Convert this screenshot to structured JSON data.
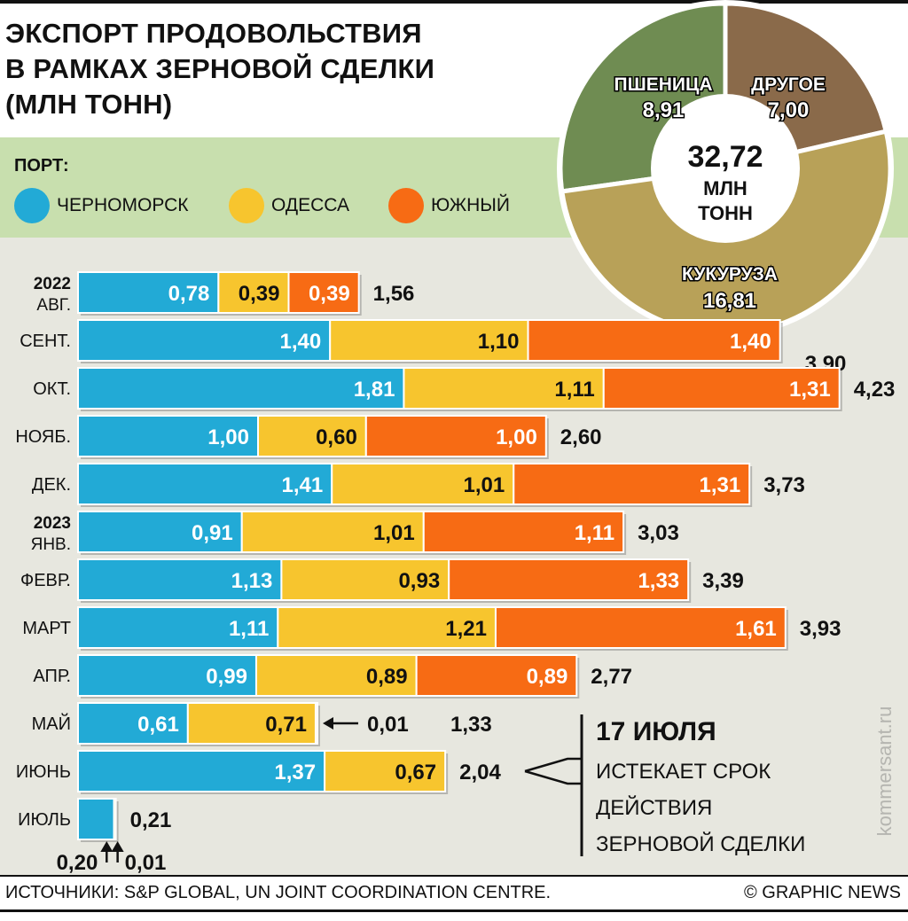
{
  "title": {
    "line1": "ЭКСПОРТ ПРОДОВОЛЬСТВИЯ",
    "line2": "В РАМКАХ ЗЕРНОВОЙ СДЕЛКИ",
    "line3": "(МЛН ТОНН)"
  },
  "legend": {
    "title": "ПОРТ:",
    "items": [
      {
        "label": "ЧЕРНОМОРСК",
        "color": "#22aad6"
      },
      {
        "label": "ОДЕССА",
        "color": "#f7c52e"
      },
      {
        "label": "ЮЖНЫЙ",
        "color": "#f76b14"
      }
    ]
  },
  "pie": {
    "center_value": "32,72",
    "center_unit1": "МЛН",
    "center_unit2": "ТОНН",
    "total": 32.72,
    "slices": [
      {
        "label": "ПШЕНИЦА",
        "value_text": "8,91",
        "value": 8.91,
        "color": "#6f8c52"
      },
      {
        "label": "ДРУГОЕ",
        "value_text": "7,00",
        "value": 7.0,
        "color": "#8a6a4a"
      },
      {
        "label": "КУКУРУЗА",
        "value_text": "16,81",
        "value": 16.81,
        "color": "#b8a158"
      }
    ]
  },
  "chart_data": {
    "type": "bar",
    "orientation": "horizontal",
    "stacked": true,
    "categories": [
      "АВГ.",
      "СЕНТ.",
      "ОКТ.",
      "НОЯБ.",
      "ДЕК.",
      "ЯНВ.",
      "ФЕВР.",
      "МАРТ",
      "АПР.",
      "МАЙ",
      "ИЮНЬ",
      "ИЮЛЬ"
    ],
    "year_labels": [
      {
        "index": 0,
        "year": "2022"
      },
      {
        "index": 5,
        "year": "2023"
      }
    ],
    "series": [
      {
        "name": "ЧЕРНОМОРСК",
        "color": "#22aad6",
        "values": [
          0.78,
          1.4,
          1.81,
          1.0,
          1.41,
          0.91,
          1.13,
          1.11,
          0.99,
          0.61,
          1.37,
          0.2
        ],
        "labels": [
          "0,78",
          "1,40",
          "1,81",
          "1,00",
          "1,41",
          "0,91",
          "1,13",
          "1,11",
          "0,99",
          "0,61",
          "1,37",
          "0,20"
        ]
      },
      {
        "name": "ОДЕССА",
        "color": "#f7c52e",
        "values": [
          0.39,
          1.1,
          1.11,
          0.6,
          1.01,
          1.01,
          0.93,
          1.21,
          0.89,
          0.71,
          0.67,
          0.01
        ],
        "labels": [
          "0,39",
          "1,10",
          "1,11",
          "0,60",
          "1,01",
          "1,01",
          "0,93",
          "1,21",
          "0,89",
          "0,71",
          "0,67",
          "0,01"
        ]
      },
      {
        "name": "ЮЖНЫЙ",
        "color": "#f76b14",
        "values": [
          0.39,
          1.4,
          1.31,
          1.0,
          1.31,
          1.11,
          1.33,
          1.61,
          0.89,
          0.01,
          0,
          0
        ],
        "labels": [
          "0,39",
          "1,40",
          "1,31",
          "1,00",
          "1,31",
          "1,11",
          "1,33",
          "1,61",
          "0,89",
          "0,01",
          "",
          ""
        ]
      }
    ],
    "totals": [
      1.56,
      3.9,
      4.23,
      2.6,
      3.73,
      3.03,
      3.39,
      3.93,
      2.77,
      1.33,
      2.04,
      0.21
    ],
    "total_labels": [
      "1,56",
      "3,90",
      "4,23",
      "2,60",
      "3,73",
      "3,03",
      "3,39",
      "3,93",
      "2,77",
      "1,33",
      "2,04",
      "0,21"
    ]
  },
  "note": {
    "date": "17 ИЮЛЯ",
    "line1": "ИСТЕКАЕТ СРОК",
    "line2": "ДЕЙСТВИЯ",
    "line3": "ЗЕРНОВОЙ СДЕЛКИ"
  },
  "source": "ИСТОЧНИКИ: S&P GLOBAL, UN JOINT COORDINATION CENTRE.",
  "credit": "© GRAPHIC NEWS",
  "watermark": "kommersant.ru"
}
